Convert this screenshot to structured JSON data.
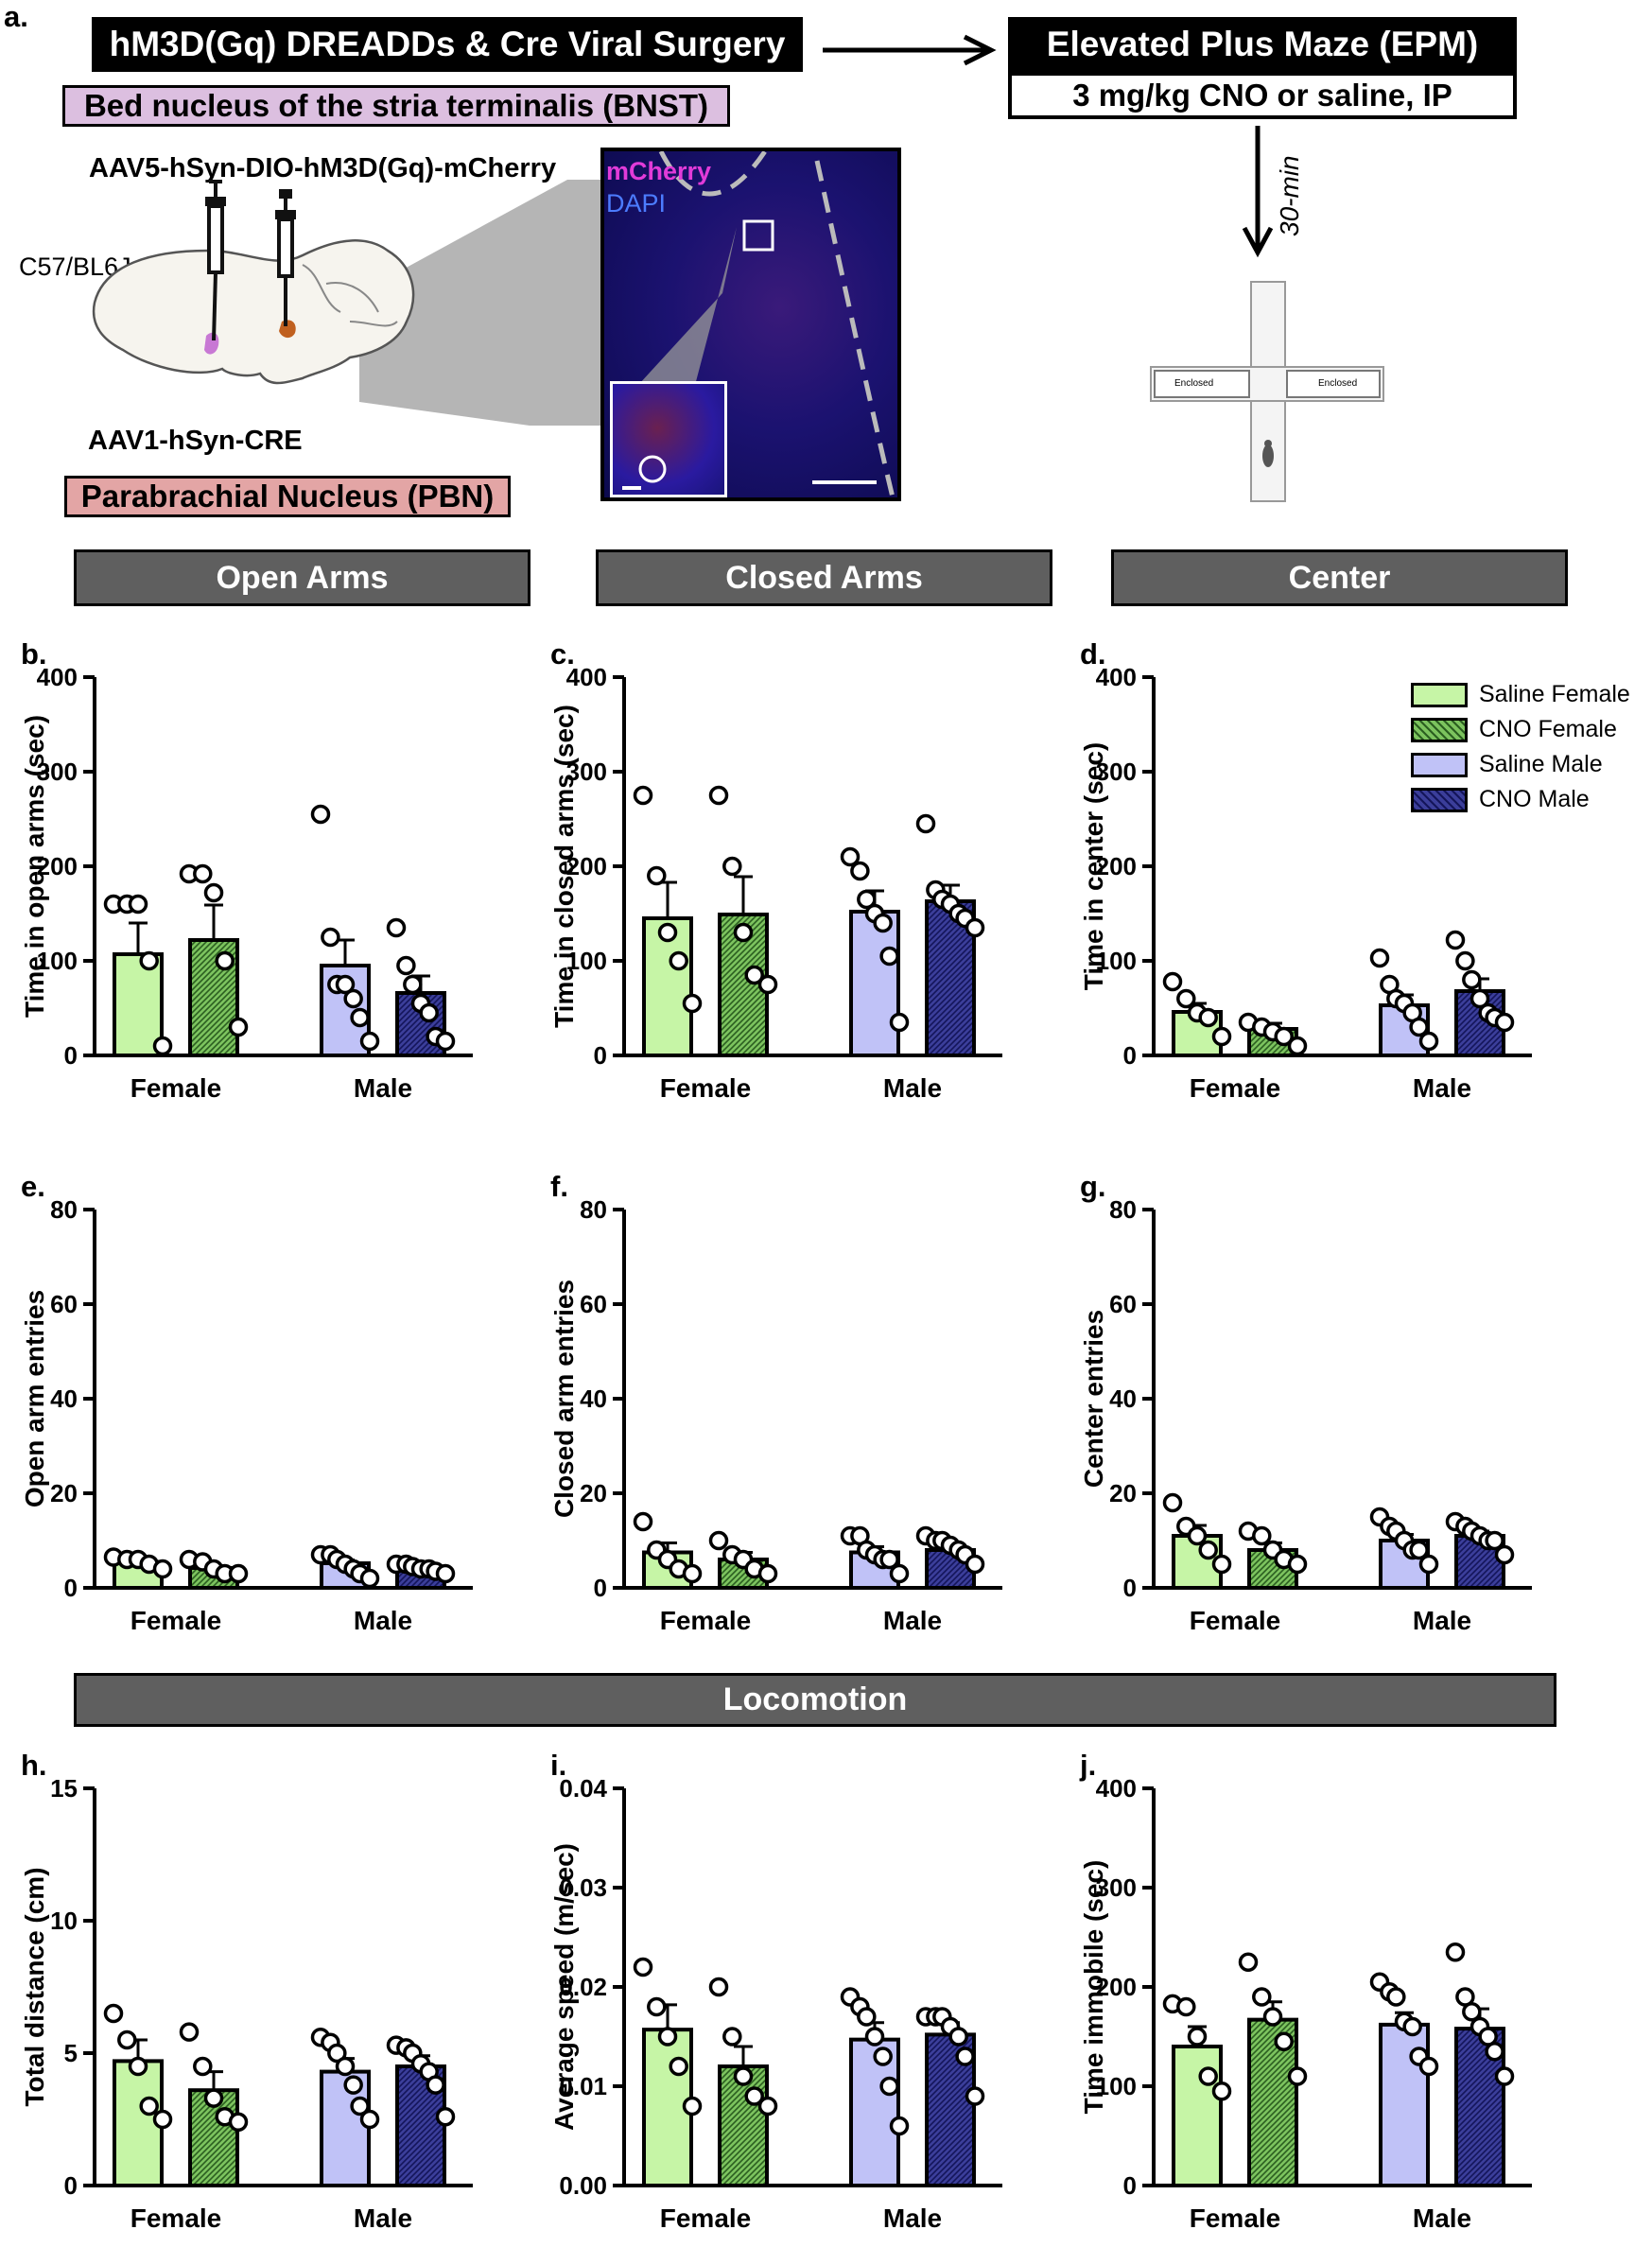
{
  "colors": {
    "saline_female": "#c6f5a6",
    "cno_female": "#7cc35e",
    "saline_male": "#c0c2f7",
    "cno_male": "#3b3e9a",
    "section_bar": "#5f5f5f",
    "bnst": "#dcbfe0",
    "pbn": "#e3a5a5",
    "mcherry": "#e23bd9",
    "dapi": "#4c7cff"
  },
  "panel_a": {
    "letter": "a.",
    "surgery_title": "hM3D(Gq) DREADDs & Cre Viral Surgery",
    "bnst_label": "Bed nucleus of the stria terminalis (BNST)",
    "virus1": "AAV5-hSyn-DIO-hM3D(Gq)-mCherry",
    "strain": "C57/BL6J ♀",
    "virus2": "AAV1-hSyn-CRE",
    "pbn_label": "Parabrachial Nucleus (PBN)",
    "micro_mcherry": "mCherry",
    "micro_dapi": "DAPI",
    "epm_title": "Elevated Plus Maze (EPM)",
    "epm_treatment": "3 mg/kg CNO or saline, IP",
    "delay": "30-min",
    "maze_left": "Enclosed",
    "maze_right": "Enclosed"
  },
  "sections": {
    "open_arms": "Open Arms",
    "closed_arms": "Closed Arms",
    "center": "Center",
    "locomotion": "Locomotion"
  },
  "legend": [
    "Saline Female",
    "CNO Female",
    "Saline Male",
    "CNO Male"
  ],
  "chart_data": [
    {
      "panel": "b.",
      "type": "bar",
      "ylabel": "Time in open arms (sec)",
      "ylim": [
        0,
        400
      ],
      "ticks": [
        "0",
        "100",
        "200",
        "300",
        "400"
      ],
      "categories": [
        "Female",
        "Male"
      ],
      "series": [
        {
          "name": "Saline Female",
          "mean": 107,
          "sem": 33,
          "points": [
            160,
            160,
            160,
            100,
            10
          ]
        },
        {
          "name": "CNO Female",
          "mean": 122,
          "sem": 37,
          "points": [
            192,
            192,
            172,
            100,
            30
          ]
        },
        {
          "name": "Saline Male",
          "mean": 95,
          "sem": 27,
          "points": [
            255,
            125,
            75,
            75,
            60,
            40,
            15
          ]
        },
        {
          "name": "CNO Male",
          "mean": 66,
          "sem": 18,
          "points": [
            135,
            95,
            75,
            55,
            45,
            20,
            15
          ]
        }
      ]
    },
    {
      "panel": "c.",
      "type": "bar",
      "ylabel": "Time in closed arms (sec)",
      "ylim": [
        0,
        400
      ],
      "ticks": [
        "0",
        "100",
        "200",
        "300",
        "400"
      ],
      "categories": [
        "Female",
        "Male"
      ],
      "series": [
        {
          "name": "Saline Female",
          "mean": 145,
          "sem": 38,
          "points": [
            275,
            190,
            130,
            100,
            55
          ]
        },
        {
          "name": "CNO Female",
          "mean": 149,
          "sem": 40,
          "points": [
            275,
            200,
            130,
            85,
            75
          ]
        },
        {
          "name": "Saline Male",
          "mean": 152,
          "sem": 22,
          "points": [
            210,
            195,
            165,
            150,
            140,
            105,
            35
          ]
        },
        {
          "name": "CNO Male",
          "mean": 163,
          "sem": 17,
          "points": [
            245,
            175,
            165,
            160,
            150,
            145,
            135
          ]
        }
      ]
    },
    {
      "panel": "d.",
      "type": "bar",
      "ylabel": "Time in center (sec)",
      "ylim": [
        0,
        400
      ],
      "ticks": [
        "0",
        "100",
        "200",
        "300",
        "400"
      ],
      "categories": [
        "Female",
        "Male"
      ],
      "series": [
        {
          "name": "Saline Female",
          "mean": 46,
          "sem": 9,
          "points": [
            78,
            60,
            45,
            40,
            20
          ]
        },
        {
          "name": "CNO Female",
          "mean": 28,
          "sem": 6,
          "points": [
            35,
            30,
            25,
            20,
            10
          ]
        },
        {
          "name": "Saline Male",
          "mean": 53,
          "sem": 11,
          "points": [
            103,
            75,
            60,
            55,
            45,
            30,
            15
          ]
        },
        {
          "name": "CNO Male",
          "mean": 68,
          "sem": 13,
          "points": [
            122,
            100,
            80,
            60,
            45,
            40,
            35
          ]
        }
      ]
    },
    {
      "panel": "e.",
      "type": "bar",
      "ylabel": "Open arm entries",
      "ylim": [
        0,
        80
      ],
      "ticks": [
        "0",
        "20",
        "40",
        "60",
        "80"
      ],
      "categories": [
        "Female",
        "Male"
      ],
      "series": [
        {
          "name": "Saline Female",
          "mean": 5.5,
          "sem": 0.6,
          "points": [
            6.5,
            6,
            6,
            5,
            4
          ]
        },
        {
          "name": "CNO Female",
          "mean": 4.2,
          "sem": 0.5,
          "points": [
            6,
            5.5,
            4,
            3,
            3
          ]
        },
        {
          "name": "Saline Male",
          "mean": 5.2,
          "sem": 0.7,
          "points": [
            7,
            7,
            6,
            5,
            4,
            3,
            2
          ]
        },
        {
          "name": "CNO Male",
          "mean": 4.2,
          "sem": 0.4,
          "points": [
            5,
            5,
            4.5,
            4,
            4,
            3.5,
            3
          ]
        }
      ]
    },
    {
      "panel": "f.",
      "type": "bar",
      "ylabel": "Closed arm entries",
      "ylim": [
        0,
        80
      ],
      "ticks": [
        "0",
        "20",
        "40",
        "60",
        "80"
      ],
      "categories": [
        "Female",
        "Male"
      ],
      "series": [
        {
          "name": "Saline Female",
          "mean": 7.5,
          "sem": 2,
          "points": [
            14,
            8,
            6,
            4,
            3
          ]
        },
        {
          "name": "CNO Female",
          "mean": 6,
          "sem": 1.5,
          "points": [
            10,
            7,
            6,
            4,
            3
          ]
        },
        {
          "name": "Saline Male",
          "mean": 7.5,
          "sem": 1.2,
          "points": [
            11,
            11,
            8,
            7,
            6,
            6,
            3
          ]
        },
        {
          "name": "CNO Male",
          "mean": 8,
          "sem": 0.8,
          "points": [
            11,
            10,
            10,
            9,
            8,
            7,
            5
          ]
        }
      ]
    },
    {
      "panel": "g.",
      "type": "bar",
      "ylabel": "Center entries",
      "ylim": [
        0,
        80
      ],
      "ticks": [
        "0",
        "20",
        "40",
        "60",
        "80"
      ],
      "categories": [
        "Female",
        "Male"
      ],
      "series": [
        {
          "name": "Saline Female",
          "mean": 11,
          "sem": 2.2,
          "points": [
            18,
            13,
            11,
            8,
            5
          ]
        },
        {
          "name": "CNO Female",
          "mean": 8,
          "sem": 1.5,
          "points": [
            12,
            11,
            8,
            6,
            5
          ]
        },
        {
          "name": "Saline Male",
          "mean": 10,
          "sem": 1.3,
          "points": [
            15,
            13,
            12,
            10,
            8,
            8,
            5
          ]
        },
        {
          "name": "CNO Male",
          "mean": 11,
          "sem": 1,
          "points": [
            14,
            13,
            12,
            11,
            10,
            10,
            7
          ]
        }
      ]
    },
    {
      "panel": "h.",
      "type": "bar",
      "ylabel": "Total distance (cm)",
      "ylim": [
        0,
        15
      ],
      "ticks": [
        "0",
        "5",
        "10",
        "15"
      ],
      "categories": [
        "Female",
        "Male"
      ],
      "series": [
        {
          "name": "Saline Female",
          "mean": 4.7,
          "sem": 0.8,
          "points": [
            6.5,
            5.5,
            4.5,
            3,
            2.5
          ]
        },
        {
          "name": "CNO Female",
          "mean": 3.6,
          "sem": 0.7,
          "points": [
            5.8,
            4.5,
            3.3,
            2.6,
            2.4
          ]
        },
        {
          "name": "Saline Male",
          "mean": 4.3,
          "sem": 0.5,
          "points": [
            5.6,
            5.4,
            5,
            4.5,
            3.8,
            3,
            2.5
          ]
        },
        {
          "name": "CNO Male",
          "mean": 4.5,
          "sem": 0.4,
          "points": [
            5.3,
            5.2,
            5,
            4.6,
            4.3,
            3.8,
            2.6
          ]
        }
      ]
    },
    {
      "panel": "i.",
      "type": "bar",
      "ylabel": "Average speed (m/sec)",
      "ylim": [
        0,
        0.04
      ],
      "ticks": [
        "0.00",
        "0.01",
        "0.02",
        "0.03",
        "0.04"
      ],
      "categories": [
        "Female",
        "Male"
      ],
      "series": [
        {
          "name": "Saline Female",
          "mean": 0.0157,
          "sem": 0.0025,
          "points": [
            0.022,
            0.018,
            0.015,
            0.012,
            0.008
          ]
        },
        {
          "name": "CNO Female",
          "mean": 0.012,
          "sem": 0.002,
          "points": [
            0.02,
            0.015,
            0.011,
            0.009,
            0.008
          ]
        },
        {
          "name": "Saline Male",
          "mean": 0.0147,
          "sem": 0.0017,
          "points": [
            0.019,
            0.018,
            0.017,
            0.015,
            0.013,
            0.01,
            0.006
          ]
        },
        {
          "name": "CNO Male",
          "mean": 0.0152,
          "sem": 0.0012,
          "points": [
            0.017,
            0.017,
            0.017,
            0.016,
            0.015,
            0.013,
            0.009
          ]
        }
      ]
    },
    {
      "panel": "j.",
      "type": "bar",
      "ylabel": "Time immobile (sec)",
      "ylim": [
        0,
        400
      ],
      "ticks": [
        "0",
        "100",
        "200",
        "300",
        "400"
      ],
      "categories": [
        "Female",
        "Male"
      ],
      "series": [
        {
          "name": "Saline Female",
          "mean": 140,
          "sem": 20,
          "points": [
            183,
            180,
            150,
            110,
            95
          ]
        },
        {
          "name": "CNO Female",
          "mean": 167,
          "sem": 18,
          "points": [
            225,
            190,
            170,
            145,
            110
          ]
        },
        {
          "name": "Saline Male",
          "mean": 162,
          "sem": 12,
          "points": [
            205,
            195,
            190,
            165,
            160,
            130,
            120
          ]
        },
        {
          "name": "CNO Male",
          "mean": 158,
          "sem": 20,
          "points": [
            235,
            190,
            175,
            160,
            150,
            135,
            110
          ]
        }
      ]
    }
  ]
}
